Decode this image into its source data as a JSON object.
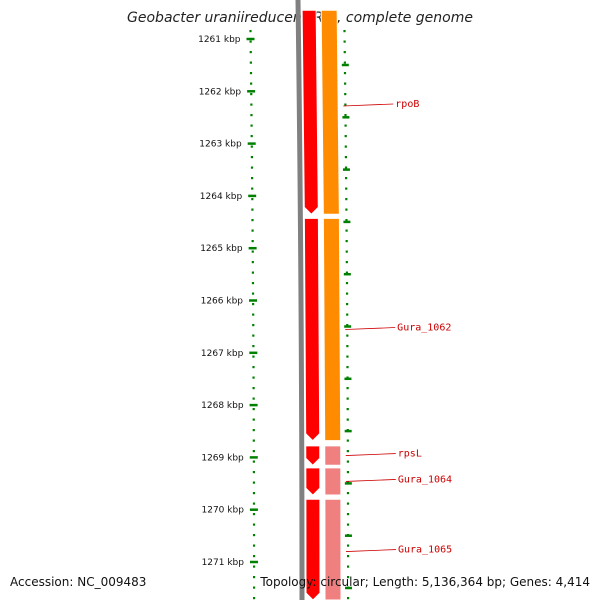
{
  "title": "Geobacter uraniireducens Rf4, complete genome",
  "footer": {
    "accession": "Accession: NC_009483",
    "summary": "Topology: circular; Length: 5,136,364 bp; Genes: 4,414"
  },
  "ticks": [
    "1261 kbp",
    "1262 kbp",
    "1263 kbp",
    "1264 kbp",
    "1265 kbp",
    "1266 kbp",
    "1267 kbp",
    "1268 kbp",
    "1269 kbp",
    "1270 kbp",
    "1271 kbp"
  ],
  "genes": [
    {
      "name": "rpoB",
      "start_kbp": 1260.45,
      "end_kbp": 1264.35,
      "cog_color": "#ff8c00"
    },
    {
      "name": "Gura_1062",
      "start_kbp": 1264.43,
      "end_kbp": 1268.68,
      "cog_color": "#ff8c00"
    },
    {
      "name": "rpsL",
      "start_kbp": 1268.78,
      "end_kbp": 1269.15,
      "cog_color": "#f08080"
    },
    {
      "name": "Gura_1064",
      "start_kbp": 1269.2,
      "end_kbp": 1269.72,
      "cog_color": "#f08080"
    },
    {
      "name": "Gura_1065",
      "start_kbp": 1269.8,
      "end_kbp": 1271.8,
      "cog_color": "#f08080"
    }
  ],
  "colors": {
    "cds": "#ff0000",
    "backbone": "#808080",
    "ticks": "#008000",
    "label": "#cc0000"
  }
}
